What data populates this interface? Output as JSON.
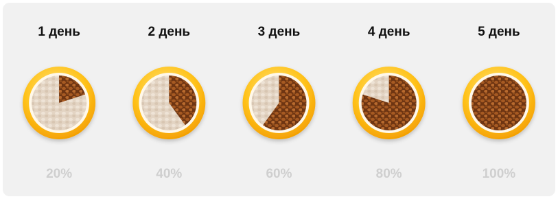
{
  "chart_data": {
    "type": "bowl",
    "categories": [
      "1 день",
      "2 день",
      "3 день",
      "4 день",
      "5 день"
    ],
    "values": [
      20,
      40,
      60,
      80,
      100
    ],
    "value_labels": [
      "20%",
      "40%",
      "60%",
      "80%",
      "100%"
    ],
    "color": "#8a4a1c"
  }
}
